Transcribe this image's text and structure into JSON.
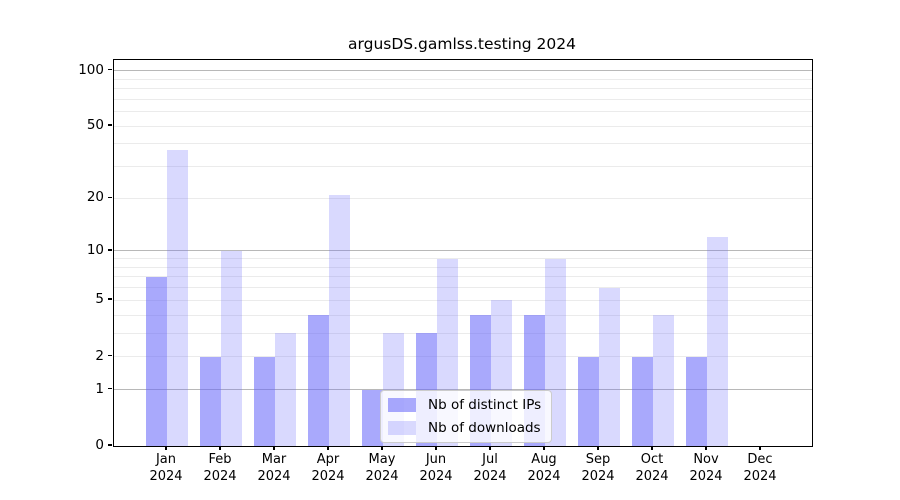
{
  "title": "argusDS.gamlss.testing 2024",
  "chart_data": {
    "type": "bar",
    "title": "argusDS.gamlss.testing 2024",
    "categories": [
      "Jan",
      "Feb",
      "Mar",
      "Apr",
      "May",
      "Jun",
      "Jul",
      "Aug",
      "Sep",
      "Oct",
      "Nov",
      "Dec"
    ],
    "x_year_label": "2024",
    "series": [
      {
        "name": "Nb of distinct IPs",
        "color": "#6666fa",
        "opacity": 0.56,
        "values": [
          7,
          2,
          2,
          4,
          1,
          3,
          4,
          4,
          2,
          2,
          2,
          0
        ]
      },
      {
        "name": "Nb of downloads",
        "color": "#6666fa",
        "opacity": 0.25,
        "values": [
          37,
          10,
          3,
          21,
          3,
          9,
          5,
          9,
          6,
          4,
          12,
          0
        ]
      }
    ],
    "yscale": "log1p",
    "ylim": [
      0,
      114
    ],
    "yticks": [
      100,
      50,
      20,
      10,
      5,
      2,
      1,
      0
    ],
    "grid_major": [
      1,
      10,
      100
    ],
    "grid_minor": [
      2,
      3,
      4,
      5,
      6,
      7,
      8,
      9,
      20,
      30,
      40,
      50,
      60,
      70,
      80,
      90
    ],
    "grid_major_color": "#b8b8b8",
    "grid_minor_color": "#ebebeb",
    "axis_color": "#000000",
    "legend": {
      "items": [
        "Nb of distinct IPs",
        "Nb of downloads"
      ],
      "position": "bottom-center"
    }
  }
}
